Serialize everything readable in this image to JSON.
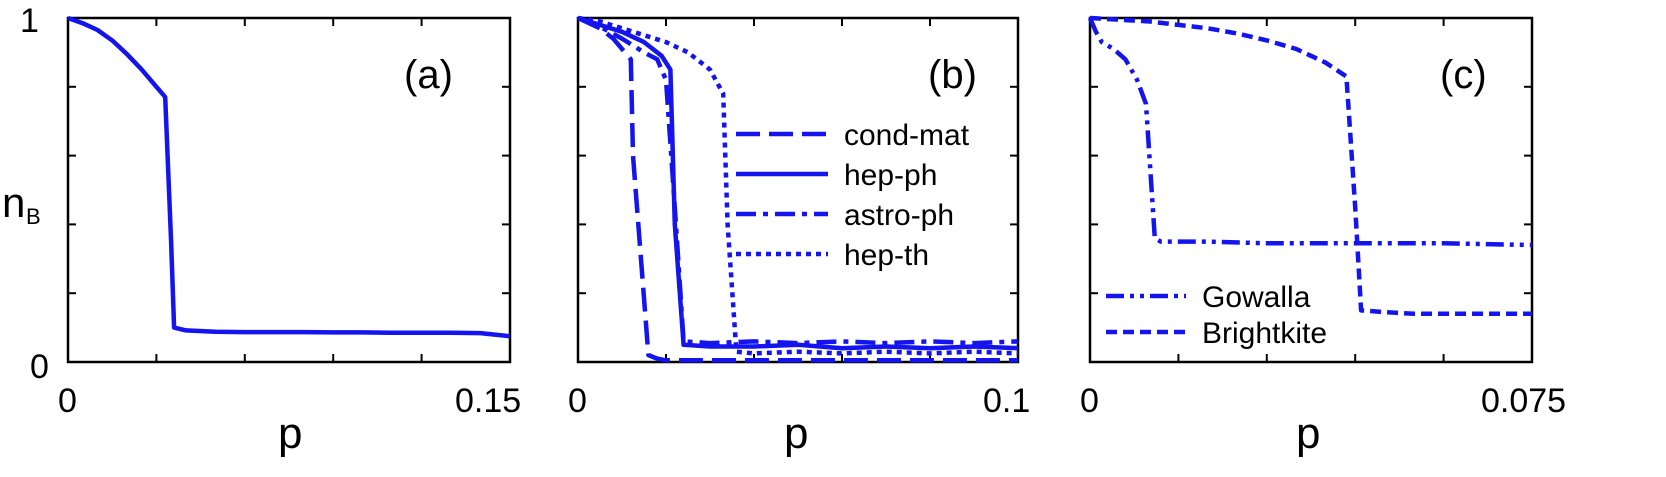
{
  "figure": {
    "ylabel_main": "n",
    "ylabel_sub": "B",
    "line_color": "#1414ee"
  },
  "chart_data": [
    {
      "type": "line",
      "panel_tag": "(a)",
      "xlabel": "p",
      "xlim": [
        0,
        0.15
      ],
      "ylim": [
        0,
        1
      ],
      "x_tick_labels": [
        "0",
        "0.15"
      ],
      "y_tick_labels": [
        "0",
        "1"
      ],
      "legend_position": "none",
      "series": [
        {
          "style": "solid",
          "x": [
            0,
            0.005,
            0.01,
            0.015,
            0.02,
            0.025,
            0.03,
            0.033,
            0.035,
            0.036,
            0.04,
            0.05,
            0.06,
            0.07,
            0.08,
            0.09,
            0.1,
            0.11,
            0.12,
            0.13,
            0.14,
            0.15
          ],
          "y": [
            1.0,
            0.985,
            0.965,
            0.935,
            0.895,
            0.85,
            0.8,
            0.77,
            0.35,
            0.1,
            0.092,
            0.088,
            0.087,
            0.087,
            0.087,
            0.086,
            0.086,
            0.085,
            0.085,
            0.085,
            0.084,
            0.075
          ]
        }
      ]
    },
    {
      "type": "line",
      "panel_tag": "(b)",
      "xlabel": "p",
      "xlim": [
        0,
        0.1
      ],
      "ylim": [
        0,
        1
      ],
      "x_tick_labels": [
        "0",
        "0.1"
      ],
      "y_tick_labels": [],
      "legend_position": "center-right",
      "series": [
        {
          "name": "cond-mat",
          "style": "longdash",
          "x": [
            0,
            0.005,
            0.008,
            0.012,
            0.0125,
            0.016,
            0.018,
            0.02,
            0.03,
            0.04,
            0.05,
            0.06,
            0.07,
            0.08,
            0.09,
            0.1
          ],
          "y": [
            1.0,
            0.97,
            0.94,
            0.88,
            0.6,
            0.02,
            0.01,
            0.005,
            0.005,
            0.005,
            0.005,
            0.005,
            0.005,
            0.005,
            0.005,
            0.005
          ]
        },
        {
          "name": "hep-ph",
          "style": "solid",
          "x": [
            0,
            0.005,
            0.01,
            0.015,
            0.019,
            0.021,
            0.022,
            0.024,
            0.03,
            0.04,
            0.05,
            0.06,
            0.07,
            0.08,
            0.09,
            0.1
          ],
          "y": [
            1.0,
            0.98,
            0.96,
            0.93,
            0.89,
            0.85,
            0.4,
            0.05,
            0.045,
            0.045,
            0.05,
            0.04,
            0.045,
            0.04,
            0.045,
            0.04
          ]
        },
        {
          "name": "astro-ph",
          "style": "dashdot",
          "x": [
            0,
            0.005,
            0.01,
            0.015,
            0.018,
            0.02,
            0.022,
            0.024,
            0.03,
            0.04,
            0.05,
            0.06,
            0.07,
            0.08,
            0.09,
            0.1
          ],
          "y": [
            1.0,
            0.975,
            0.94,
            0.9,
            0.88,
            0.82,
            0.45,
            0.06,
            0.055,
            0.06,
            0.055,
            0.06,
            0.055,
            0.06,
            0.055,
            0.06
          ]
        },
        {
          "name": "hep-th",
          "style": "dotted",
          "x": [
            0,
            0.005,
            0.01,
            0.015,
            0.02,
            0.025,
            0.03,
            0.033,
            0.034,
            0.036,
            0.04,
            0.05,
            0.06,
            0.07,
            0.08,
            0.09,
            0.1
          ],
          "y": [
            1.0,
            0.99,
            0.97,
            0.95,
            0.93,
            0.9,
            0.85,
            0.78,
            0.4,
            0.03,
            0.025,
            0.03,
            0.025,
            0.03,
            0.025,
            0.03,
            0.025
          ]
        }
      ]
    },
    {
      "type": "line",
      "panel_tag": "(c)",
      "xlabel": "p",
      "xlim": [
        0,
        0.075
      ],
      "ylim": [
        0,
        1
      ],
      "x_tick_labels": [
        "0",
        "0.075"
      ],
      "y_tick_labels": [],
      "legend_position": "bottom-left",
      "series": [
        {
          "name": "Gowalla",
          "style": "dashdotdot",
          "x": [
            0,
            0.001,
            0.002,
            0.004,
            0.006,
            0.008,
            0.0095,
            0.011,
            0.012,
            0.013,
            0.02,
            0.03,
            0.04,
            0.05,
            0.06,
            0.075
          ],
          "y": [
            1.0,
            0.96,
            0.93,
            0.91,
            0.88,
            0.82,
            0.75,
            0.36,
            0.35,
            0.35,
            0.35,
            0.345,
            0.345,
            0.345,
            0.345,
            0.34
          ]
        },
        {
          "name": "Brightkite",
          "style": "dashed",
          "x": [
            0,
            0.005,
            0.01,
            0.015,
            0.02,
            0.025,
            0.03,
            0.035,
            0.04,
            0.0435,
            0.045,
            0.046,
            0.05,
            0.055,
            0.06,
            0.065,
            0.07,
            0.075
          ],
          "y": [
            1.0,
            0.995,
            0.99,
            0.98,
            0.97,
            0.955,
            0.935,
            0.91,
            0.87,
            0.83,
            0.45,
            0.15,
            0.145,
            0.14,
            0.14,
            0.14,
            0.14,
            0.14
          ]
        }
      ]
    }
  ]
}
